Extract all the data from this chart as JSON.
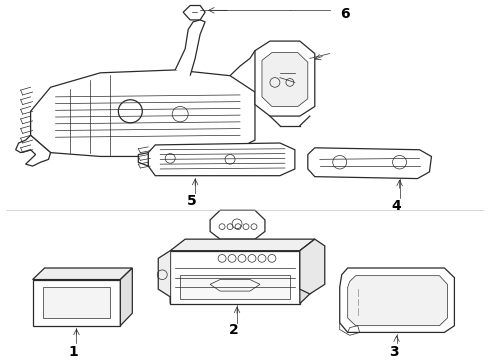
{
  "background_color": "#ffffff",
  "line_color": "#2a2a2a",
  "label_color": "#000000",
  "figsize": [
    4.9,
    3.6
  ],
  "dpi": 100,
  "lw_main": 0.9,
  "lw_detail": 0.5
}
